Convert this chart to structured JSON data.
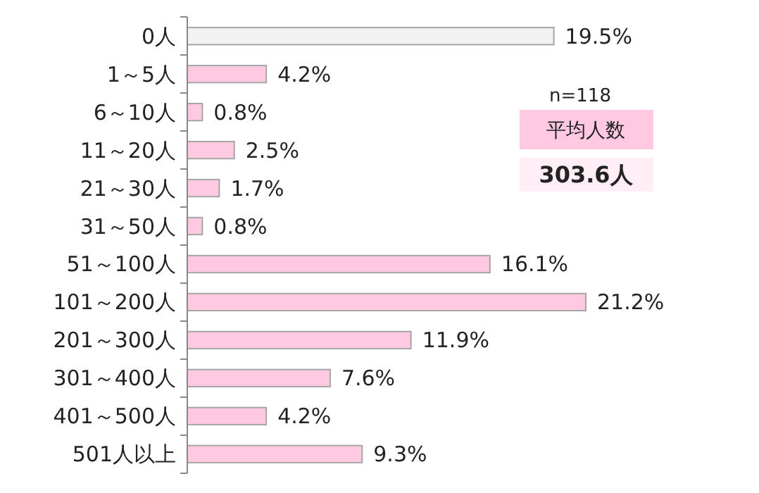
{
  "chart_data": {
    "type": "bar",
    "orientation": "horizontal",
    "categories": [
      "0人",
      "1～5人",
      "6～10人",
      "11～20人",
      "21～30人",
      "31～50人",
      "51～100人",
      "101～200人",
      "201～300人",
      "301～400人",
      "401～500人",
      "501人以上"
    ],
    "values": [
      19.5,
      4.2,
      0.8,
      2.5,
      1.7,
      0.8,
      16.1,
      21.2,
      11.9,
      7.6,
      4.2,
      9.3
    ],
    "value_labels": [
      "19.5%",
      "4.2%",
      "0.8%",
      "2.5%",
      "1.7%",
      "0.8%",
      "16.1%",
      "21.2%",
      "11.9%",
      "7.6%",
      "4.2%",
      "9.3%"
    ],
    "colors": [
      "#f2f2f2",
      "#ffc9e2",
      "#ffc9e2",
      "#ffc9e2",
      "#ffc9e2",
      "#ffc9e2",
      "#ffc9e2",
      "#ffc9e2",
      "#ffc9e2",
      "#ffc9e2",
      "#ffc9e2",
      "#ffc9e2"
    ],
    "annotations": [
      "n=118",
      "平均人数",
      "303.6人"
    ]
  }
}
